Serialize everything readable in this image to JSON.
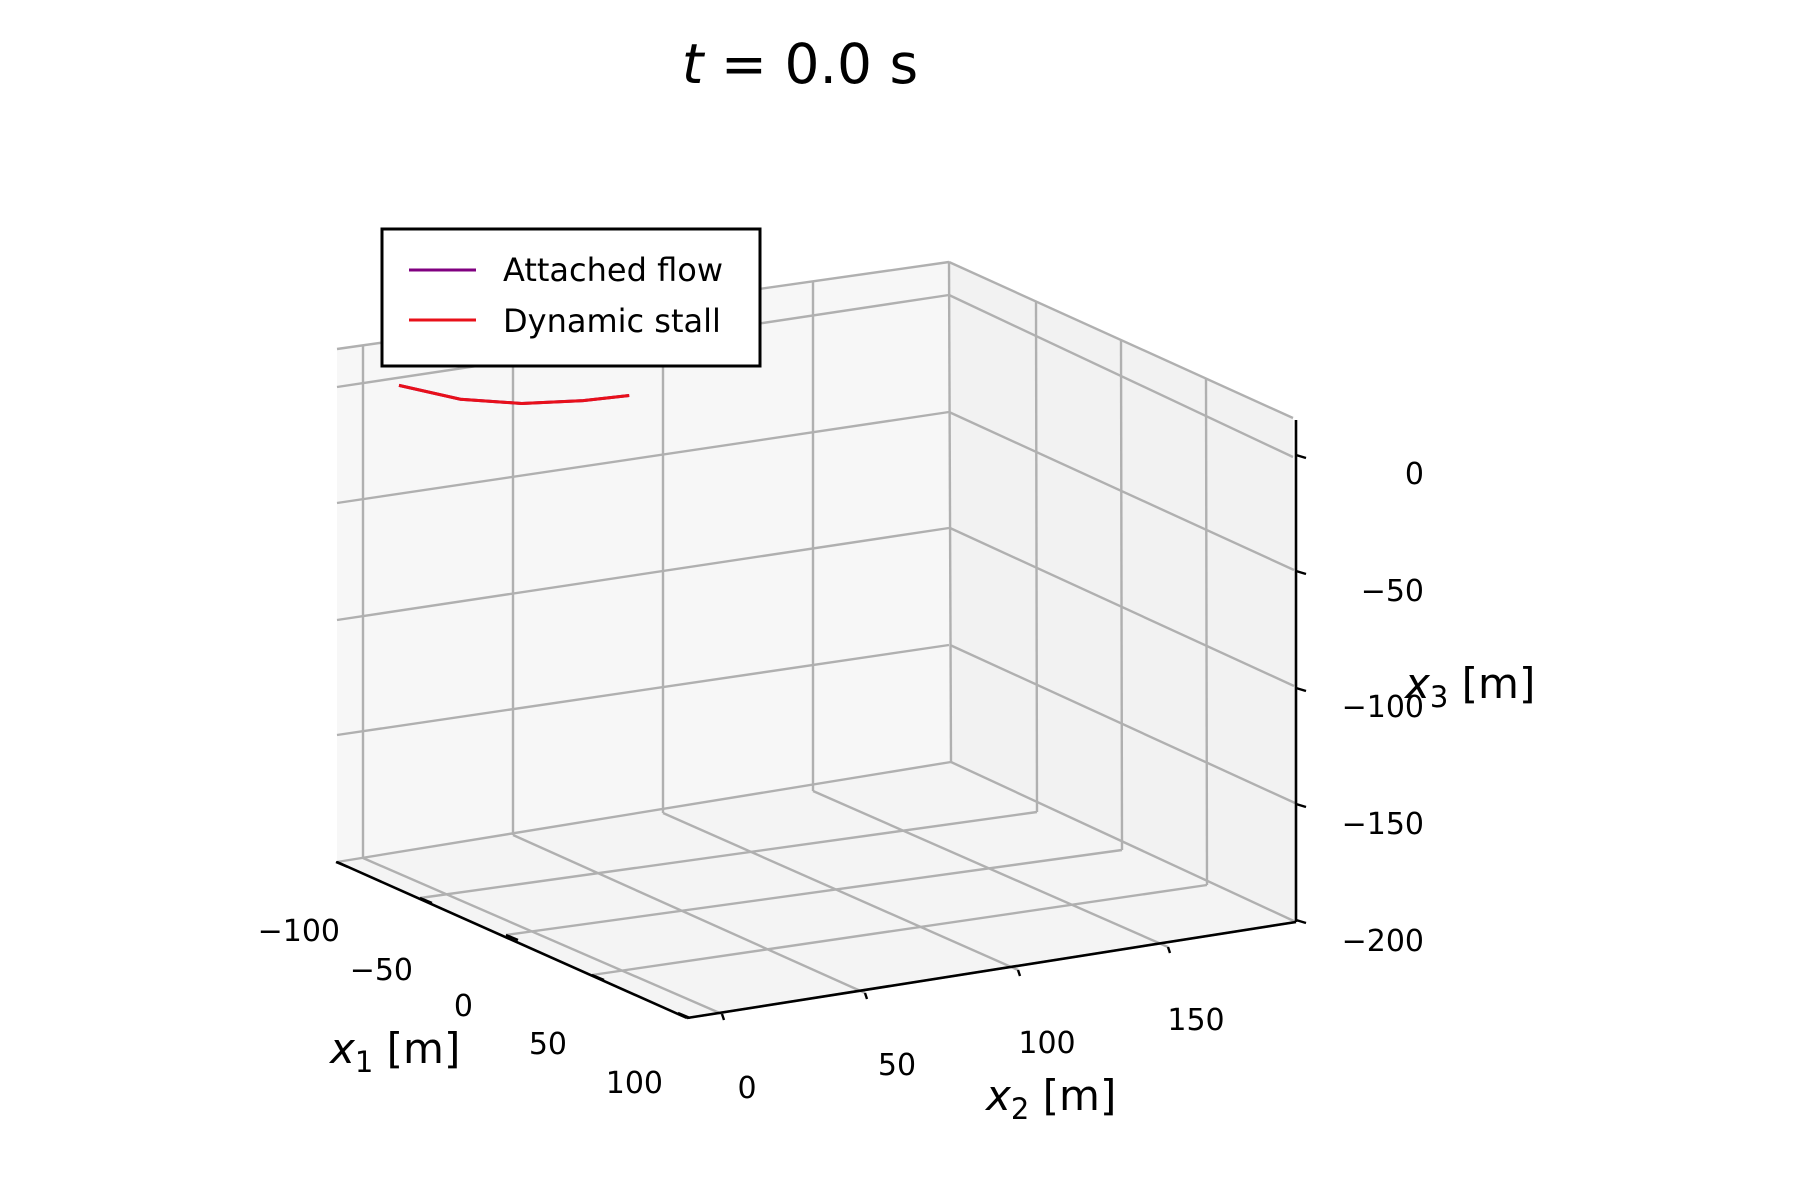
{
  "chart_data": {
    "type": "line",
    "projection": "3d",
    "title_var": "t",
    "title_eq": " = ",
    "title_value": "0.0 s",
    "xlabel": {
      "var": "x",
      "sub": "1",
      "unit": " [m]"
    },
    "ylabel": {
      "var": "x",
      "sub": "2",
      "unit": " [m]"
    },
    "zlabel": {
      "var": "x",
      "sub": "3",
      "unit": " [m]"
    },
    "x_ticks": [
      "−100",
      "−50",
      "0",
      "50",
      "100"
    ],
    "y_ticks": [
      "0",
      "50",
      "100",
      "150"
    ],
    "z_ticks": [
      "0",
      "−50",
      "−100",
      "−150",
      "−200"
    ],
    "legend_position": "upper-left",
    "grid": true,
    "series": [
      {
        "name": "Attached flow",
        "color": "#800080",
        "points": [
          [
            -100,
            5,
            0
          ],
          [
            -100,
            25,
            -10
          ],
          [
            -100,
            45,
            -16
          ],
          [
            -100,
            65,
            -19
          ],
          [
            -100,
            80,
            -20
          ]
        ]
      },
      {
        "name": "Dynamic stall",
        "color": "#e8101a",
        "points": [
          [
            -100,
            5,
            0
          ],
          [
            -100,
            25,
            -10
          ],
          [
            -100,
            45,
            -16
          ],
          [
            -100,
            65,
            -19
          ],
          [
            -100,
            80,
            -20
          ]
        ]
      }
    ]
  }
}
